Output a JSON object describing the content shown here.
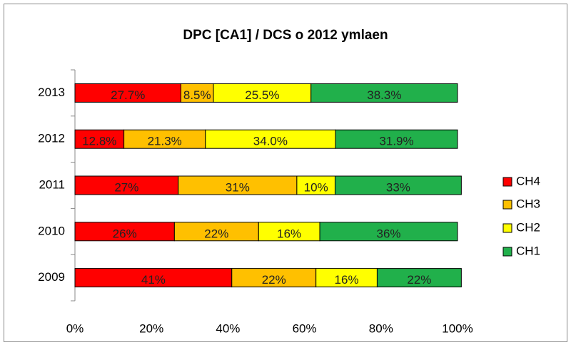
{
  "chart_data": {
    "type": "stacked_bar_horizontal",
    "title": "DPC [CA1] / DCS o 2012 ymlaen",
    "categories": [
      "2009",
      "2010",
      "2011",
      "2012",
      "2013"
    ],
    "series": [
      {
        "name": "CH4",
        "color": "#ff0000",
        "values": [
          41,
          26,
          27,
          12.8,
          27.7
        ],
        "value_labels": [
          "41%",
          "26%",
          "27%",
          "12.8%",
          "27.7%"
        ]
      },
      {
        "name": "CH3",
        "color": "#ffc000",
        "values": [
          22,
          22,
          31,
          21.3,
          8.5
        ],
        "value_labels": [
          "22%",
          "22%",
          "31%",
          "21.3%",
          "8.5%"
        ]
      },
      {
        "name": "CH2",
        "color": "#ffff00",
        "values": [
          16,
          16,
          10,
          34.0,
          25.5
        ],
        "value_labels": [
          "16%",
          "16%",
          "10%",
          "34.0%",
          "25.5%"
        ]
      },
      {
        "name": "CH1",
        "color": "#21b04b",
        "values": [
          22,
          36,
          33,
          31.9,
          38.3
        ],
        "value_labels": [
          "22%",
          "36%",
          "33%",
          "31.9%",
          "38.3%"
        ]
      }
    ],
    "xlim": [
      0,
      100
    ],
    "xticks": [
      {
        "value": 0,
        "label": "0%"
      },
      {
        "value": 20,
        "label": "20%"
      },
      {
        "value": 40,
        "label": "40%"
      },
      {
        "value": 60,
        "label": "60%"
      },
      {
        "value": 80,
        "label": "80%"
      },
      {
        "value": 100,
        "label": "100%"
      }
    ],
    "legend": "right"
  }
}
